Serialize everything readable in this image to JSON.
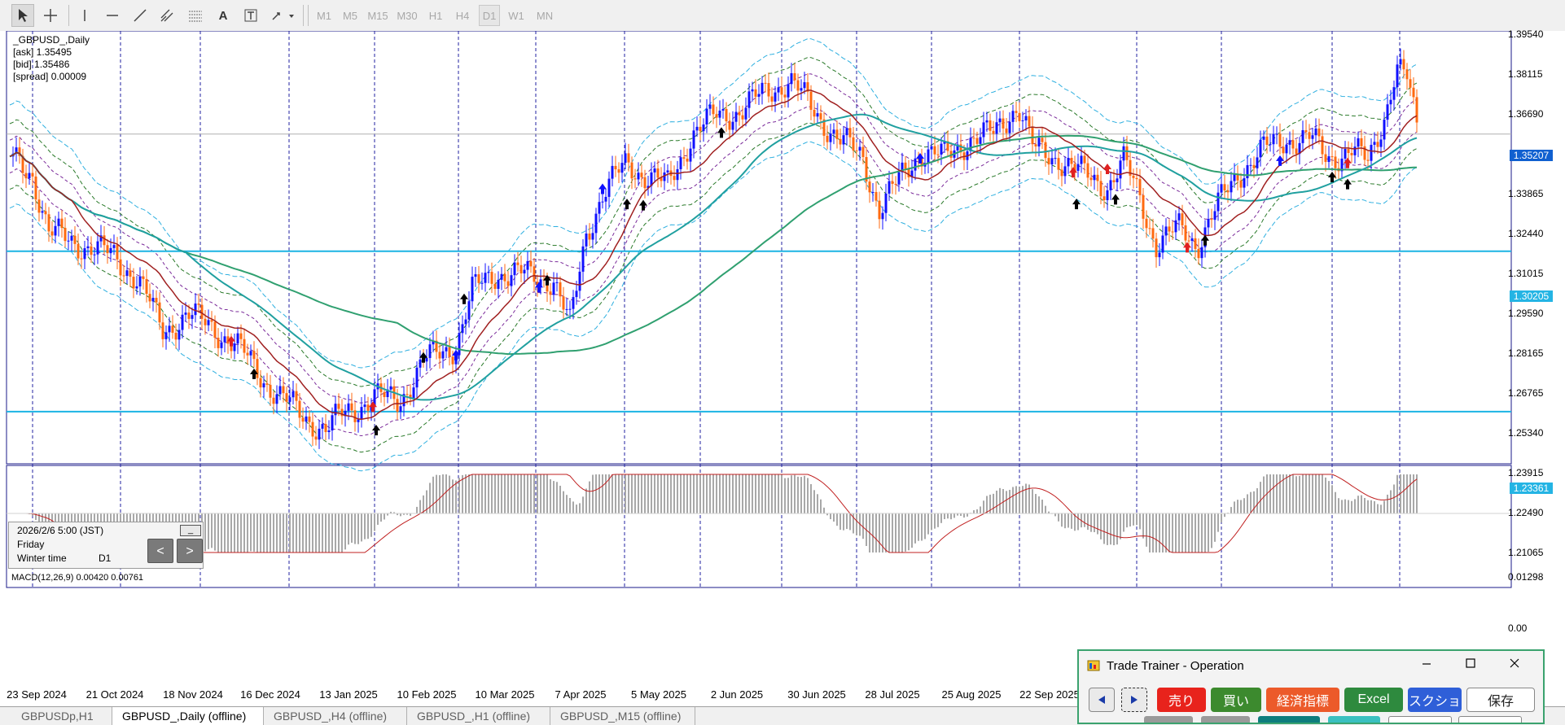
{
  "toolbar": {
    "timeframes": [
      "M1",
      "M5",
      "M15",
      "M30",
      "H1",
      "H4",
      "D1",
      "W1",
      "MN"
    ],
    "active_timeframe": "D1"
  },
  "chart": {
    "symbol_title": "_GBPUSD_,Daily",
    "ask": "[ask] 1.35495",
    "bid": "[bid] 1.35486",
    "spread": "[spread] 0.00009",
    "price_axis": [
      "1.39540",
      "1.38115",
      "1.36690",
      "1.33865",
      "1.32440",
      "1.31015",
      "1.29590",
      "1.28165",
      "1.26765",
      "1.25340",
      "1.23915",
      "1.22490",
      "1.21065"
    ],
    "current_price": "1.35207",
    "hline_upper": "1.30205",
    "hline_lower": "1.23361",
    "macd_label": "MACD(12,26,9) 0.00420 0.00761",
    "macd_axis": [
      "0.01298",
      "0.00"
    ],
    "dates": [
      "23 Sep 2024",
      "21 Oct 2024",
      "18 Nov 2024",
      "16 Dec 2024",
      "13 Jan 2025",
      "10 Feb 2025",
      "10 Mar 2025",
      "7 Apr 2025",
      "5 May 2025",
      "2 Jun 2025",
      "30 Jun 2025",
      "28 Jul 2025",
      "25 Aug 2025",
      "22 Sep 2025"
    ],
    "colors": {
      "up": "#1010ff",
      "down": "#ff6a10",
      "hline": "#1cb4e4",
      "ma_red": "#a02020",
      "ma_teal": "#20a0a0",
      "ma_green": "#30a070",
      "bb": "#30b0e0"
    }
  },
  "datebox": {
    "datetime": "2026/2/6 5:00 (JST)",
    "day": "Friday",
    "season": "Winter time",
    "timeframe": "D1",
    "prev": "<",
    "next": ">",
    "minimize": "_"
  },
  "tabs": [
    "GBPUSDp,H1",
    "GBPUSD_,Daily (offline)",
    "GBPUSD_,H4 (offline)",
    "GBPUSD_,H1 (offline)",
    "GBPUSD_,M15 (offline)"
  ],
  "active_tab": 1,
  "trainer": {
    "title": "Trade Trainer - Operation",
    "buttons": [
      {
        "label": "売り",
        "color": "#e8231c"
      },
      {
        "label": "買い",
        "color": "#3c8a2e"
      },
      {
        "label": "経済指標",
        "color": "#ec5a2a"
      },
      {
        "label": "Excel",
        "color": "#2e8a3e"
      },
      {
        "label": "スクショ",
        "color": "#2f5fd8"
      },
      {
        "label": "保存",
        "color": "#ffffff"
      }
    ]
  }
}
